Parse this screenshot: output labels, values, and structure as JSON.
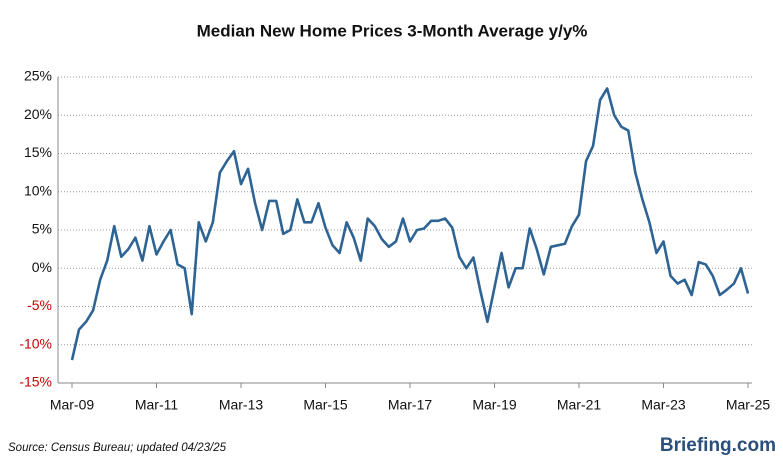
{
  "chart_data": {
    "type": "line",
    "title": "Median New Home Prices 3-Month Average y/y%",
    "source": "Source:  Census Bureau;  updated  04/23/25",
    "brand": "Briefing.com",
    "categories": [
      "Mar-09",
      null,
      null,
      null,
      null,
      null,
      null,
      null,
      null,
      null,
      null,
      null,
      "Mar-11",
      null,
      null,
      null,
      null,
      null,
      null,
      null,
      null,
      null,
      null,
      null,
      "Mar-13",
      null,
      null,
      null,
      null,
      null,
      null,
      null,
      null,
      null,
      null,
      null,
      "Mar-15",
      null,
      null,
      null,
      null,
      null,
      null,
      null,
      null,
      null,
      null,
      null,
      "Mar-17",
      null,
      null,
      null,
      null,
      null,
      null,
      null,
      null,
      null,
      null,
      null,
      "Mar-19",
      null,
      null,
      null,
      null,
      null,
      null,
      null,
      null,
      null,
      null,
      null,
      "Mar-21",
      null,
      null,
      null,
      null,
      null,
      null,
      null,
      null,
      null,
      null,
      null,
      "Mar-23",
      null,
      null,
      null,
      null,
      null,
      null,
      null,
      null,
      null,
      null,
      null,
      "Mar-25"
    ],
    "series": [
      {
        "name": "3-Month Average y/y%",
        "color": "#2e6494",
        "values": [
          -12,
          -8,
          -7,
          -5.5,
          -1.5,
          1,
          5.5,
          1.5,
          2.5,
          4,
          1,
          5.5,
          1.8,
          3.5,
          5,
          0.5,
          0,
          -6,
          6,
          3.5,
          6,
          12.5,
          14,
          15.3,
          11,
          13,
          8.5,
          5,
          8.8,
          8.8,
          4.5,
          5,
          9,
          6,
          6,
          8.5,
          5.3,
          3,
          2,
          6,
          4,
          1,
          6.5,
          5.5,
          3.8,
          2.8,
          3.5,
          6.5,
          3.5,
          5,
          5.2,
          6.2,
          6.2,
          6.5,
          5.3,
          1.5,
          0,
          1.4,
          -3,
          -7,
          -2.5,
          2,
          -2.5,
          0,
          0,
          5.2,
          2.5,
          -0.8,
          2.8,
          3,
          3.2,
          5.5,
          7,
          14,
          16,
          22,
          23.5,
          20,
          18.5,
          18,
          12.5,
          9,
          6,
          2,
          3.5,
          -1,
          -2,
          -1.5,
          -3.5,
          0.8,
          0.5,
          -1,
          -3.5,
          -2.8,
          -2,
          0,
          -3.3
        ]
      }
    ],
    "ylim": [
      -15,
      25
    ],
    "yticks": [
      {
        "value": 25,
        "label": "25%"
      },
      {
        "value": 20,
        "label": "20%"
      },
      {
        "value": 15,
        "label": "15%"
      },
      {
        "value": 10,
        "label": "10%"
      },
      {
        "value": 5,
        "label": "5%"
      },
      {
        "value": 0,
        "label": "0%"
      },
      {
        "value": -5,
        "label": "-5%"
      },
      {
        "value": -10,
        "label": "-10%"
      },
      {
        "value": -15,
        "label": "-15%"
      }
    ],
    "grid": true,
    "negative_tick_color": "#cc0000"
  }
}
